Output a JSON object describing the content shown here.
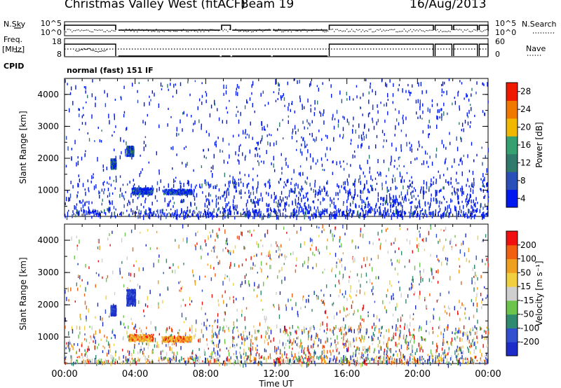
{
  "header": {
    "title": "Christmas Valley West (fitACF)",
    "beam": "Beam 19",
    "date": "16/Aug/2013"
  },
  "left_labels": {
    "nsky": "N.Sky",
    "freq": "Freq.",
    "freq_unit": "[MHz]",
    "cpid": "CPID"
  },
  "right_labels": {
    "nsearch": "N.Search",
    "nave": "Nave"
  },
  "cpid_text": "normal (fast) 151 IF",
  "noise_axis": {
    "left_ticks": [
      "10^5",
      "10^0"
    ],
    "right_ticks": [
      "10^5",
      "10^0"
    ]
  },
  "freq_axis": {
    "left_ticks": [
      "18",
      "8"
    ],
    "right_ticks": [
      "60",
      "0"
    ]
  },
  "chart_data": [
    {
      "type": "heatmap",
      "title": "",
      "xlabel": "",
      "ylabel": "Slant Range [km]",
      "xlim": [
        0,
        24
      ],
      "ylim": [
        180,
        4500
      ],
      "yticks": [
        1000,
        2000,
        3000,
        4000
      ],
      "colorbar": {
        "label": "Power [dB]",
        "ticks": [
          4,
          8,
          12,
          16,
          20,
          24,
          28
        ],
        "colors": [
          "#0018f0",
          "#2a4fb8",
          "#2f7a6a",
          "#35a070",
          "#f0b800",
          "#f07800",
          "#f01800"
        ]
      },
      "clusters": [
        {
          "t": [
            3.8,
            5.0
          ],
          "range": [
            900,
            1100
          ]
        },
        {
          "t": [
            5.6,
            7.2
          ],
          "range": [
            900,
            1050
          ]
        },
        {
          "t": [
            3.5,
            3.9
          ],
          "range": [
            2100,
            2400
          ]
        },
        {
          "t": [
            2.6,
            2.9
          ],
          "range": [
            1700,
            2000
          ]
        }
      ]
    },
    {
      "type": "heatmap",
      "title": "",
      "xlabel": "Time UT",
      "ylabel": "Slant Range [km]",
      "xlim": [
        0,
        24
      ],
      "ylim": [
        180,
        4500
      ],
      "yticks": [
        1000,
        2000,
        3000,
        4000
      ],
      "xticks": [
        "00:00",
        "04:00",
        "08:00",
        "12:00",
        "16:00",
        "20:00",
        "00:00"
      ],
      "colorbar": {
        "label": "Velocity [m s⁻¹]",
        "ticks": [
          "200",
          "100",
          "50",
          "15",
          "-15",
          "-50",
          "-100",
          "-200"
        ],
        "colors": [
          "#1c2cc8",
          "#3050d0",
          "#2f8a70",
          "#6cc44c",
          "#cfcfcf",
          "#f0d040",
          "#f0a020",
          "#f06010",
          "#f01010"
        ]
      },
      "clusters": [
        {
          "t": [
            3.6,
            5.0
          ],
          "range": [
            900,
            1100
          ]
        },
        {
          "t": [
            5.5,
            7.2
          ],
          "range": [
            880,
            1040
          ]
        },
        {
          "t": [
            3.5,
            4.0
          ],
          "range": [
            2000,
            2500
          ]
        },
        {
          "t": [
            2.6,
            2.9
          ],
          "range": [
            1700,
            2000
          ]
        }
      ]
    }
  ]
}
